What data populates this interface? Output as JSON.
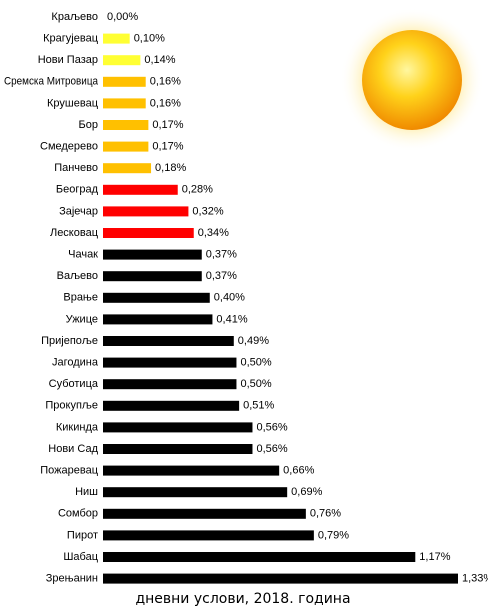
{
  "chart_data": {
    "type": "hbar",
    "x_label": "дневни услови, 2018. година",
    "categories": [
      "Краљево",
      "Крагујевац",
      "Нови Пазар",
      "Сремска Митровица",
      "Крушевац",
      "Бор",
      "Смедерево",
      "Панчево",
      "Београд",
      "Зајечар",
      "Лесковац",
      "Чачак",
      "Ваљево",
      "Врање",
      "Ужице",
      "Пријепоље",
      "Јагодина",
      "Суботица",
      "Прокупље",
      "Кикинда",
      "Нови Сад",
      "Пожаревац",
      "Ниш",
      "Сомбор",
      "Пирот",
      "Шабац",
      "Зрењанин"
    ],
    "values": [
      0.0,
      0.1,
      0.14,
      0.16,
      0.16,
      0.17,
      0.17,
      0.18,
      0.28,
      0.32,
      0.34,
      0.37,
      0.37,
      0.4,
      0.41,
      0.49,
      0.5,
      0.5,
      0.51,
      0.56,
      0.56,
      0.66,
      0.69,
      0.76,
      0.79,
      1.17,
      1.33
    ],
    "value_labels": [
      "0,00%",
      "0,10%",
      "0,14%",
      "0,16%",
      "0,16%",
      "0,17%",
      "0,17%",
      "0,18%",
      "0,28%",
      "0,32%",
      "0,34%",
      "0,37%",
      "0,37%",
      "0,40%",
      "0,41%",
      "0,49%",
      "0,50%",
      "0,50%",
      "0,51%",
      "0,56%",
      "0,56%",
      "0,66%",
      "0,69%",
      "0,76%",
      "0,79%",
      "1,17%",
      "1,33%"
    ],
    "colors": [
      "#ffff33",
      "#ffff33",
      "#ffff33",
      "#ffc000",
      "#ffc000",
      "#ffc000",
      "#ffc000",
      "#ffc000",
      "#ff0000",
      "#ff0000",
      "#ff0000",
      "#000000",
      "#000000",
      "#000000",
      "#000000",
      "#000000",
      "#000000",
      "#000000",
      "#000000",
      "#000000",
      "#000000",
      "#000000",
      "#000000",
      "#000000",
      "#000000",
      "#000000",
      "#000000"
    ]
  }
}
